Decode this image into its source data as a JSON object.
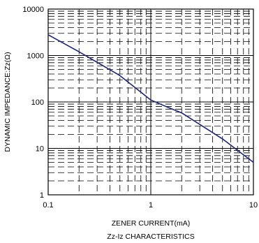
{
  "chart_data": {
    "type": "line",
    "title": "Zz-Iz CHARACTERISTICS",
    "xlabel": "ZENER CURRENT(mA)",
    "ylabel": "DYNAMIC IMPEDANCE:Zz(Ω)",
    "x_scale": "log",
    "y_scale": "log",
    "xlim": [
      0.1,
      10
    ],
    "ylim": [
      1,
      10000
    ],
    "x_ticks": [
      0.1,
      1,
      10
    ],
    "x_tick_labels": [
      "0.1",
      "1",
      "10"
    ],
    "y_ticks": [
      1,
      10,
      100,
      1000,
      10000
    ],
    "y_tick_labels": [
      "1",
      "10",
      "100",
      "1000",
      "10000"
    ],
    "grid": "major solid, minor dashed",
    "series": [
      {
        "color": "#1a237e",
        "x": [
          0.1,
          0.2,
          0.5,
          1,
          1.5,
          2,
          5,
          10
        ],
        "y": [
          2800,
          1200,
          370,
          110,
          75,
          58,
          16,
          5
        ]
      }
    ]
  }
}
